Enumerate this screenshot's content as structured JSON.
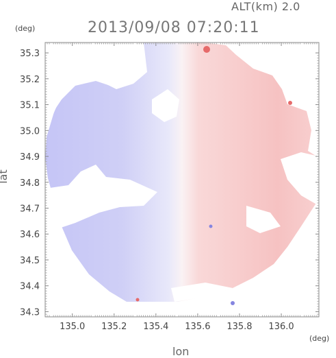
{
  "header": {
    "altitude_label": "ALT(km) 2.0",
    "timestamp": "2013/09/08 07:20:11"
  },
  "axes": {
    "lat_unit": "(deg)",
    "lon_unit": "(deg)",
    "lat_title": "lat",
    "lon_title": "lon",
    "lat_range": [
      34.28,
      35.34
    ],
    "lon_range": [
      134.87,
      136.18
    ],
    "lat_ticks": [
      "35.3",
      "35.2",
      "35.1",
      "35.0",
      "34.9",
      "34.8",
      "34.7",
      "34.6",
      "34.5",
      "34.4",
      "34.3"
    ],
    "lon_ticks": [
      "135.0",
      "135.2",
      "135.4",
      "135.6",
      "135.8",
      "136.0"
    ]
  },
  "colors": {
    "approaching": "#c8c8f5",
    "receding": "#f7c7c7",
    "strong_receding": "#e66a6a",
    "strong_approaching": "#8585e0",
    "frame": "#888888"
  }
}
